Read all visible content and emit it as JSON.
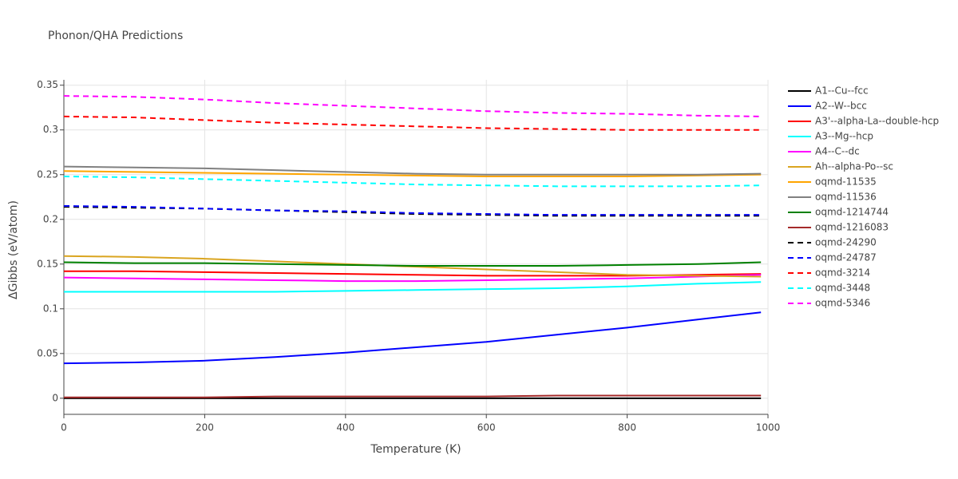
{
  "chart_data": {
    "type": "line",
    "title": "Phonon/QHA Predictions",
    "x_label": "Temperature (K)",
    "y_label": "ΔGibbs (eV/atom)",
    "x": [
      0,
      100,
      200,
      300,
      400,
      500,
      600,
      700,
      800,
      900,
      990
    ],
    "xlim": [
      0,
      1000
    ],
    "xticks": [
      0,
      200,
      400,
      600,
      800,
      1000
    ],
    "ylim": [
      -0.018,
      0.356
    ],
    "yticks": [
      0,
      0.05,
      0.1,
      0.15,
      0.2,
      0.25,
      0.3,
      0.35
    ],
    "grid": true,
    "legend": "right",
    "series": [
      {
        "name": "A1--Cu--fcc",
        "color": "#000000",
        "dash": false,
        "values": [
          0,
          0,
          0,
          0,
          0,
          0,
          0,
          0,
          0,
          0,
          0
        ]
      },
      {
        "name": "A2--W--bcc",
        "color": "#0000ff",
        "dash": false,
        "values": [
          0.039,
          0.04,
          0.042,
          0.046,
          0.051,
          0.057,
          0.063,
          0.071,
          0.079,
          0.088,
          0.096
        ]
      },
      {
        "name": "A3'--alpha-La--double-hcp",
        "color": "#ff0000",
        "dash": false,
        "values": [
          0.142,
          0.142,
          0.141,
          0.14,
          0.139,
          0.138,
          0.137,
          0.137,
          0.137,
          0.138,
          0.139
        ]
      },
      {
        "name": "A3--Mg--hcp",
        "color": "#00ffff",
        "dash": false,
        "values": [
          0.119,
          0.119,
          0.119,
          0.119,
          0.12,
          0.121,
          0.122,
          0.123,
          0.125,
          0.128,
          0.13
        ]
      },
      {
        "name": "A4--C--dc",
        "color": "#ff00ff",
        "dash": false,
        "values": [
          0.135,
          0.134,
          0.133,
          0.132,
          0.131,
          0.131,
          0.132,
          0.133,
          0.134,
          0.136,
          0.138
        ]
      },
      {
        "name": "Ah--alpha-Po--sc",
        "color": "#daa520",
        "dash": false,
        "values": [
          0.159,
          0.158,
          0.156,
          0.153,
          0.15,
          0.147,
          0.144,
          0.141,
          0.138,
          0.137,
          0.136
        ]
      },
      {
        "name": "oqmd-11535",
        "color": "#ffa500",
        "dash": false,
        "values": [
          0.254,
          0.253,
          0.252,
          0.251,
          0.25,
          0.249,
          0.248,
          0.248,
          0.248,
          0.249,
          0.25
        ]
      },
      {
        "name": "oqmd-11536",
        "color": "#808080",
        "dash": false,
        "values": [
          0.259,
          0.258,
          0.257,
          0.255,
          0.253,
          0.251,
          0.25,
          0.25,
          0.25,
          0.25,
          0.251
        ]
      },
      {
        "name": "oqmd-1214744",
        "color": "#008000",
        "dash": false,
        "values": [
          0.152,
          0.151,
          0.151,
          0.15,
          0.149,
          0.148,
          0.148,
          0.148,
          0.149,
          0.15,
          0.152
        ]
      },
      {
        "name": "oqmd-1216083",
        "color": "#a52a2a",
        "dash": false,
        "values": [
          0.001,
          0.001,
          0.001,
          0.002,
          0.002,
          0.002,
          0.002,
          0.003,
          0.003,
          0.003,
          0.003
        ]
      },
      {
        "name": "oqmd-24290",
        "color": "#000000",
        "dash": true,
        "values": [
          0.214,
          0.213,
          0.212,
          0.21,
          0.208,
          0.206,
          0.205,
          0.204,
          0.204,
          0.204,
          0.204
        ]
      },
      {
        "name": "oqmd-24787",
        "color": "#0000ff",
        "dash": true,
        "values": [
          0.215,
          0.214,
          0.212,
          0.21,
          0.209,
          0.207,
          0.206,
          0.205,
          0.205,
          0.205,
          0.205
        ]
      },
      {
        "name": "oqmd-3214",
        "color": "#ff0000",
        "dash": true,
        "values": [
          0.315,
          0.314,
          0.311,
          0.308,
          0.306,
          0.304,
          0.302,
          0.301,
          0.3,
          0.3,
          0.3
        ]
      },
      {
        "name": "oqmd-3448",
        "color": "#00ffff",
        "dash": true,
        "values": [
          0.248,
          0.247,
          0.245,
          0.243,
          0.241,
          0.239,
          0.238,
          0.237,
          0.237,
          0.237,
          0.238
        ]
      },
      {
        "name": "oqmd-5346",
        "color": "#ff00ff",
        "dash": true,
        "values": [
          0.338,
          0.337,
          0.334,
          0.33,
          0.327,
          0.324,
          0.321,
          0.319,
          0.318,
          0.316,
          0.315
        ]
      }
    ]
  }
}
